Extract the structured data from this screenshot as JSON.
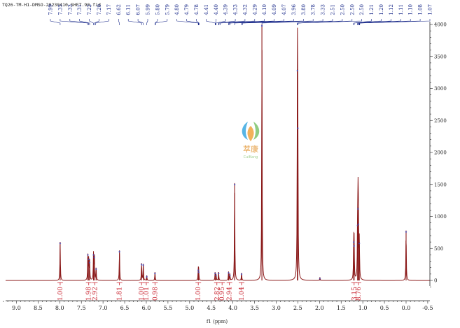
{
  "experiment_title": "TQ26-TM-H1-DMSO-20230410-SHFT.90.fid",
  "watermark": {
    "text": "萃康",
    "subtext": "CuiKang",
    "colors": [
      "#3aa8e0",
      "#7cc36b",
      "#f0a33c"
    ]
  },
  "chart_data": {
    "type": "line",
    "title": "TQ26-TM-H1-DMSO-20230410-SHFT.90.fid",
    "xlabel": "f1 (ppm)",
    "ylabel": "",
    "xlim": [
      9.25,
      -0.55
    ],
    "ylim": [
      -100,
      4000
    ],
    "x_reversed": true,
    "x_ticks": [
      "9.0",
      "8.5",
      "8.0",
      "7.5",
      "7.0",
      "6.5",
      "6.0",
      "5.5",
      "5.0",
      "4.5",
      "4.0",
      "3.5",
      "3.0",
      "2.5",
      "2.0",
      "1.5",
      "1.0",
      "0.5",
      "0.0",
      "-0.5"
    ],
    "y_ticks": [
      "0",
      "500",
      "1000",
      "1500",
      "2000",
      "2500",
      "3000",
      "3500",
      "4000"
    ],
    "peaks": [
      {
        "x": 7.99,
        "y": 600
      },
      {
        "x": 7.35,
        "y": 420
      },
      {
        "x": 7.33,
        "y": 350
      },
      {
        "x": 7.31,
        "y": 300
      },
      {
        "x": 7.22,
        "y": 420
      },
      {
        "x": 7.2,
        "y": 380
      },
      {
        "x": 7.16,
        "y": 200
      },
      {
        "x": 6.62,
        "y": 470
      },
      {
        "x": 6.11,
        "y": 270
      },
      {
        "x": 6.07,
        "y": 260
      },
      {
        "x": 5.99,
        "y": 80
      },
      {
        "x": 5.8,
        "y": 130
      },
      {
        "x": 4.8,
        "y": 180
      },
      {
        "x": 4.79,
        "y": 150
      },
      {
        "x": 4.41,
        "y": 130
      },
      {
        "x": 4.39,
        "y": 100
      },
      {
        "x": 4.33,
        "y": 130
      },
      {
        "x": 4.1,
        "y": 140
      },
      {
        "x": 4.07,
        "y": 100
      },
      {
        "x": 3.96,
        "y": 1520
      },
      {
        "x": 3.8,
        "y": 120
      },
      {
        "x": 3.33,
        "y": 4000
      },
      {
        "x": 2.51,
        "y": 3300
      },
      {
        "x": 2.5,
        "y": 2400
      },
      {
        "x": 1.99,
        "y": 50
      },
      {
        "x": 1.21,
        "y": 620
      },
      {
        "x": 1.2,
        "y": 560
      },
      {
        "x": 1.12,
        "y": 880
      },
      {
        "x": 1.11,
        "y": 1140
      },
      {
        "x": 1.1,
        "y": 900
      },
      {
        "x": 1.08,
        "y": 600
      },
      {
        "x": 0.0,
        "y": 780
      }
    ],
    "peak_labels": [
      "7.99",
      "7.35",
      "7.33",
      "7.31",
      "7.22",
      "7.20",
      "7.17",
      "6.62",
      "6.11",
      "6.07",
      "5.99",
      "5.80",
      "5.79",
      "4.80",
      "4.79",
      "4.78",
      "4.41",
      "4.40",
      "4.39",
      "4.33",
      "4.32",
      "4.29",
      "4.10",
      "4.09",
      "4.07",
      "3.96",
      "3.80",
      "3.78",
      "3.33",
      "2.51",
      "2.50",
      "2.50",
      "2.50",
      "1.21",
      "1.20",
      "1.12",
      "1.11",
      "1.10",
      "1.08",
      "1.07"
    ],
    "integrals": [
      {
        "value": "1.00",
        "x": 7.99
      },
      {
        "value": "1.98",
        "x": 7.33
      },
      {
        "value": "2.92",
        "x": 7.19
      },
      {
        "value": "1.81",
        "x": 6.62
      },
      {
        "value": "1.00",
        "x": 6.11
      },
      {
        "value": "1.01",
        "x": 6.0
      },
      {
        "value": "0.98",
        "x": 5.8
      },
      {
        "value": "1.00",
        "x": 4.8
      },
      {
        "value": "2.82",
        "x": 4.37
      },
      {
        "value": "0.95",
        "x": 4.25
      },
      {
        "value": "2.94",
        "x": 4.08
      },
      {
        "value": "1.04",
        "x": 3.8
      },
      {
        "value": "3.15",
        "x": 1.2
      },
      {
        "value": "8.76",
        "x": 1.1
      }
    ],
    "line_color": "#8b1a1a",
    "integral_color": "#c81e2a",
    "peak_label_color": "#1a2a8a"
  }
}
